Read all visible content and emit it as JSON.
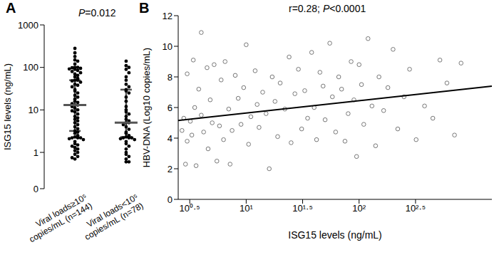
{
  "chart_data": [
    {
      "type": "dot_plot",
      "title": "A",
      "annotation": "P=0.012",
      "y_label": "ISG15 levels (ng/mL)",
      "log": "y",
      "ylim": [
        0.14,
        1000
      ],
      "yticks": [
        {
          "value": 0.14,
          "label": "0"
        },
        1,
        10,
        100,
        1000
      ],
      "color": "#000000",
      "summary_color": "#555555",
      "marker": "circle",
      "groups": [
        {
          "name_lines": [
            "Viral loads≥10⁵",
            "copies/mL (n=144)"
          ],
          "median": 13,
          "q1": 3.2,
          "q3": 50,
          "values": [
            280,
            220,
            180,
            150,
            140,
            120,
            100,
            100,
            98,
            95,
            92,
            90,
            85,
            80,
            75,
            70,
            65,
            60,
            55,
            50,
            50,
            48,
            45,
            40,
            38,
            35,
            30,
            28,
            25,
            22,
            20,
            18,
            16,
            15,
            14,
            13,
            13,
            12,
            11,
            10,
            9.5,
            9,
            8,
            7,
            6.5,
            6,
            5.5,
            5,
            4.5,
            4,
            3.6,
            3.2,
            3,
            2.8,
            2.5,
            2.3,
            2.2,
            2.2,
            2.2,
            2.1,
            2,
            1.8,
            1.6,
            1.5,
            1.4,
            1.3,
            1.2,
            1.1,
            1,
            0.9,
            0.8,
            0.75,
            0.7
          ]
        },
        {
          "name_lines": [
            "Viral loads<10⁵",
            "copies/mL (n=78)"
          ],
          "median": 5,
          "q1": 2.3,
          "q3": 30,
          "values": [
            140,
            110,
            100,
            90,
            75,
            60,
            50,
            40,
            35,
            30,
            28,
            25,
            20,
            16,
            12,
            10,
            9,
            8,
            7,
            6,
            5.5,
            5,
            5,
            4.5,
            4,
            3.5,
            3,
            2.8,
            2.5,
            2.3,
            2.2,
            2.2,
            2.2,
            2.1,
            2,
            1.8,
            1.6,
            1.4,
            1.2,
            1,
            0.9,
            0.8,
            0.7,
            0.6,
            0.6
          ]
        }
      ]
    },
    {
      "type": "scatter",
      "title": "B",
      "annotation": "r=0.28; P<0.0001",
      "x_label": "ISG15 levels (ng/mL)",
      "y_label": "HBV-DNA  (Log10 copies/mL)",
      "log": "x",
      "xlim": [
        2.5,
        1500
      ],
      "xticks": [
        {
          "value": 3.162,
          "label": "10⁰·⁵"
        },
        {
          "value": 10,
          "label": "10¹"
        },
        {
          "value": 31.62,
          "label": "10¹·⁵"
        },
        {
          "value": 100,
          "label": "10²"
        },
        {
          "value": 316.2,
          "label": "10²·⁵"
        }
      ],
      "ylim": [
        0,
        12
      ],
      "yticks": [
        0,
        2,
        4,
        6,
        8,
        10,
        12
      ],
      "color": "#777777",
      "marker": "open_circle",
      "fit_color": "#000000",
      "x": [
        2.7,
        2.8,
        2.9,
        3,
        3,
        3.2,
        3.3,
        3.4,
        3.5,
        3.6,
        3.8,
        4,
        4,
        4.2,
        4.5,
        4.6,
        4.8,
        5,
        5.2,
        5.5,
        5.8,
        6,
        6.3,
        6.5,
        7,
        7.2,
        7.5,
        8,
        8.5,
        9,
        9.5,
        10,
        10.5,
        11,
        12,
        12.5,
        13,
        14,
        15,
        16,
        17,
        18,
        19,
        20,
        22,
        24,
        25,
        27,
        29,
        31,
        33,
        35,
        38,
        40,
        42,
        45,
        48,
        50,
        55,
        58,
        62,
        66,
        70,
        75,
        80,
        85,
        90,
        95,
        100,
        105,
        110,
        120,
        130,
        140,
        150,
        165,
        180,
        200,
        220,
        250,
        280,
        320,
        380,
        450,
        520,
        600,
        700,
        800
      ],
      "y": [
        4.5,
        5.3,
        2.3,
        3.8,
        8.2,
        5.1,
        4.2,
        9.1,
        6,
        2.2,
        7.2,
        5.5,
        10.9,
        4.4,
        8.6,
        3.3,
        6.5,
        5,
        8.8,
        2.5,
        4.8,
        7.8,
        3.9,
        9,
        5.9,
        2.3,
        4.5,
        8.1,
        6.6,
        4.9,
        7.3,
        10.1,
        3.6,
        5.4,
        8.4,
        6.2,
        4.7,
        7,
        5.6,
        2,
        8,
        6.4,
        4.1,
        7.6,
        5.9,
        9.3,
        3.7,
        6.9,
        8.5,
        4.6,
        7.1,
        5.3,
        9.6,
        6,
        3.9,
        8.3,
        7.4,
        5.2,
        10.2,
        6.7,
        4.4,
        8,
        7.2,
        3.8,
        5.6,
        9,
        6.5,
        2.8,
        8.8,
        7.5,
        4.9,
        10.5,
        6.1,
        3.5,
        8,
        5.8,
        7.3,
        9.8,
        4.6,
        6.7,
        8.5,
        3.9,
        6.1,
        5.3,
        9.1,
        7.6,
        4.2,
        8.9
      ],
      "fit": {
        "x": [
          2.5,
          1500
        ],
        "y": [
          5.15,
          7.4
        ]
      }
    }
  ]
}
